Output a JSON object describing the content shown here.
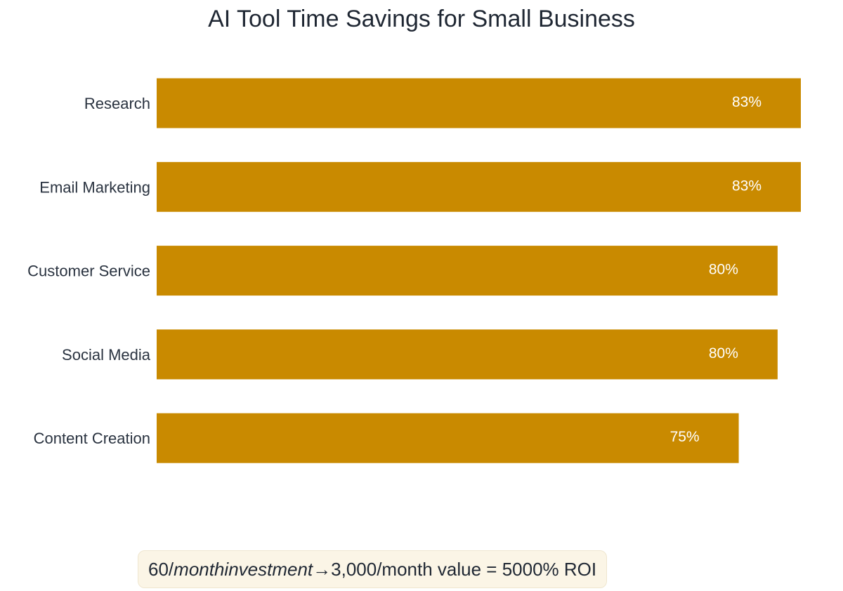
{
  "chart_data": {
    "type": "bar",
    "orientation": "horizontal",
    "title": "AI Tool Time Savings for Small Business",
    "categories": [
      "Research",
      "Email Marketing",
      "Customer Service",
      "Social Media",
      "Content Creation"
    ],
    "values": [
      83,
      83,
      80,
      80,
      75
    ],
    "value_labels": [
      "83%",
      "83%",
      "80%",
      "80%",
      "75%"
    ],
    "xlim": [
      0,
      83
    ],
    "grid": false,
    "bar_color": "#c98a00",
    "label_color": "#ffffff"
  },
  "roi_note": {
    "part1": "60/",
    "part2": "monthinvestment",
    "part3": "→3,000/month value  =  5000% ROI"
  }
}
